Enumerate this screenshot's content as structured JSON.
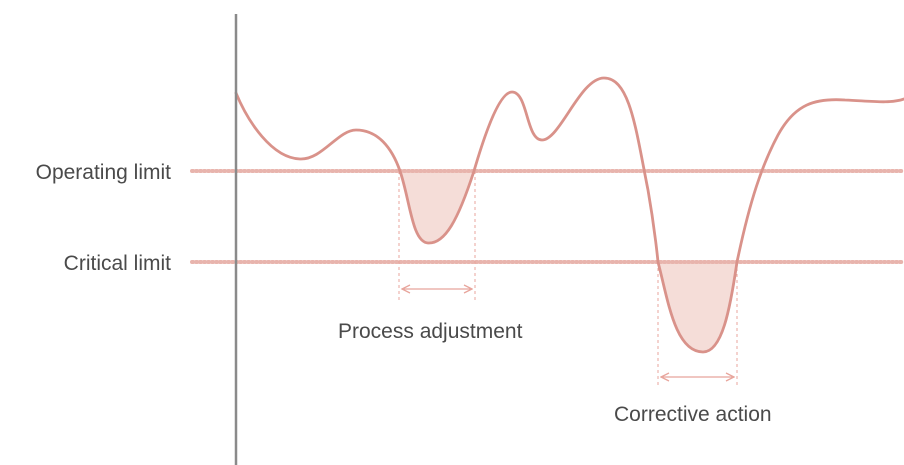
{
  "limits": {
    "operating": "Operating limit",
    "critical": "Critical limit"
  },
  "annotations": {
    "adjustment": "Process adjustment",
    "corrective": "Corrective action"
  },
  "colors": {
    "curve": "#d9928a",
    "limit_line": "#e8b4ad",
    "fill": "#f5ddd8",
    "guide": "#e8a59c",
    "axis": "#8a8a8a",
    "text": "#4a4a4a"
  }
}
